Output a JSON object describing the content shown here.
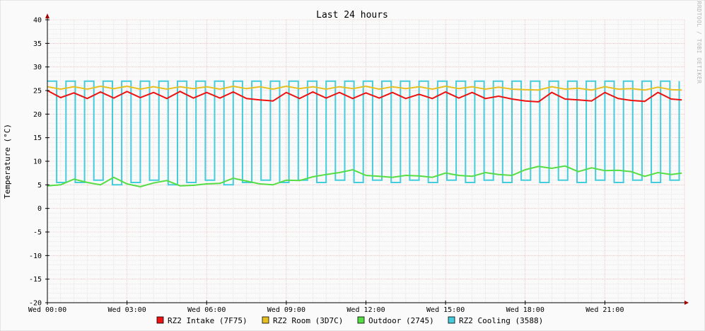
{
  "chart_data": {
    "type": "line",
    "title": "Last 24 hours",
    "ylabel": "Temperature (°C)",
    "xlabel": "",
    "watermark": "RRDTOOL / TOBI OETIKER",
    "ylim": [
      -20,
      40
    ],
    "yticks": [
      "40",
      "35",
      "30",
      "25",
      "20",
      "15",
      "10",
      "5",
      "0",
      "-5",
      "-10",
      "-15",
      "-20"
    ],
    "xlim_hours": [
      0,
      24
    ],
    "xticks": [
      {
        "hour": 0,
        "label": "Wed 00:00"
      },
      {
        "hour": 3,
        "label": "Wed 03:00"
      },
      {
        "hour": 6,
        "label": "Wed 06:00"
      },
      {
        "hour": 9,
        "label": "Wed 09:00"
      },
      {
        "hour": 12,
        "label": "Wed 12:00"
      },
      {
        "hour": 15,
        "label": "Wed 15:00"
      },
      {
        "hour": 18,
        "label": "Wed 18:00"
      },
      {
        "hour": 21,
        "label": "Wed 21:00"
      }
    ],
    "grid": true,
    "legend_position": "bottom",
    "colors": {
      "background": "#fafafa",
      "major_grid": "#e7a7a7",
      "minor_grid": "#d9d9d9",
      "axis": "#000000",
      "arrow": "#a00000"
    },
    "series": [
      {
        "name": "RZ2 Intake (7F75)",
        "color": "#ee1111",
        "x": [
          0.0,
          0.5,
          1.0,
          1.5,
          2.0,
          2.5,
          3.0,
          3.5,
          4.0,
          4.5,
          5.0,
          5.5,
          6.0,
          6.5,
          7.0,
          7.5,
          8.0,
          8.5,
          9.0,
          9.5,
          10.0,
          10.5,
          11.0,
          11.5,
          12.0,
          12.5,
          13.0,
          13.5,
          14.0,
          14.5,
          15.0,
          15.5,
          16.0,
          16.5,
          17.0,
          17.5,
          18.0,
          18.5,
          19.0,
          19.5,
          20.0,
          20.5,
          21.0,
          21.5,
          22.0,
          22.5,
          23.0,
          23.5,
          23.9
        ],
        "values": [
          25.0,
          23.5,
          24.5,
          23.3,
          24.7,
          23.4,
          24.8,
          23.5,
          24.6,
          23.3,
          24.8,
          23.4,
          24.6,
          23.4,
          24.7,
          23.3,
          23.0,
          22.8,
          24.6,
          23.3,
          24.7,
          23.4,
          24.6,
          23.3,
          24.5,
          23.4,
          24.6,
          23.3,
          24.2,
          23.3,
          24.7,
          23.4,
          24.6,
          23.3,
          23.8,
          23.2,
          22.8,
          22.6,
          24.6,
          23.2,
          23.0,
          22.8,
          24.6,
          23.3,
          22.9,
          22.7,
          24.6,
          23.2,
          23.0
        ]
      },
      {
        "name": "RZ2 Room (3D7C)",
        "color": "#e6c020",
        "x": [
          0.0,
          0.5,
          1.0,
          1.5,
          2.0,
          2.5,
          3.0,
          3.5,
          4.0,
          4.5,
          5.0,
          5.5,
          6.0,
          6.5,
          7.0,
          7.5,
          8.0,
          8.5,
          9.0,
          9.5,
          10.0,
          10.5,
          11.0,
          11.5,
          12.0,
          12.5,
          13.0,
          13.5,
          14.0,
          14.5,
          15.0,
          15.5,
          16.0,
          16.5,
          17.0,
          17.5,
          18.0,
          18.5,
          19.0,
          19.5,
          20.0,
          20.5,
          21.0,
          21.5,
          22.0,
          22.5,
          23.0,
          23.5,
          23.9
        ],
        "values": [
          25.8,
          25.3,
          25.8,
          25.3,
          25.9,
          25.4,
          25.9,
          25.3,
          25.8,
          25.3,
          25.8,
          25.4,
          25.8,
          25.3,
          25.9,
          25.4,
          25.8,
          25.3,
          25.9,
          25.4,
          25.8,
          25.3,
          25.8,
          25.4,
          25.9,
          25.3,
          25.8,
          25.4,
          25.8,
          25.3,
          25.9,
          25.4,
          25.8,
          25.3,
          25.7,
          25.3,
          25.2,
          25.1,
          25.8,
          25.3,
          25.5,
          25.1,
          25.8,
          25.3,
          25.4,
          25.1,
          25.7,
          25.2,
          25.1
        ]
      },
      {
        "name": "Outdoor (2745)",
        "color": "#55dd44",
        "x": [
          0.0,
          0.5,
          1.0,
          1.5,
          2.0,
          2.5,
          3.0,
          3.5,
          4.0,
          4.5,
          5.0,
          5.5,
          6.0,
          6.5,
          7.0,
          7.5,
          8.0,
          8.5,
          9.0,
          9.5,
          10.0,
          10.5,
          11.0,
          11.5,
          12.0,
          12.5,
          13.0,
          13.5,
          14.0,
          14.5,
          15.0,
          15.5,
          16.0,
          16.5,
          17.0,
          17.5,
          18.0,
          18.5,
          19.0,
          19.5,
          20.0,
          20.5,
          21.0,
          21.5,
          22.0,
          22.5,
          23.0,
          23.5,
          23.9
        ],
        "values": [
          4.8,
          5.0,
          6.2,
          5.5,
          5.0,
          6.6,
          5.2,
          4.6,
          5.4,
          5.9,
          4.8,
          4.9,
          5.2,
          5.3,
          6.4,
          5.8,
          5.2,
          5.0,
          6.0,
          5.9,
          6.7,
          7.2,
          7.6,
          8.2,
          7.0,
          6.8,
          6.6,
          7.0,
          6.9,
          6.6,
          7.5,
          7.0,
          6.8,
          7.6,
          7.2,
          7.0,
          8.2,
          8.9,
          8.5,
          9.0,
          7.8,
          8.6,
          8.0,
          8.1,
          7.8,
          6.8,
          7.6,
          7.2,
          7.5
        ]
      },
      {
        "name": "RZ2 Cooling (3588)",
        "color": "#44ccdd",
        "waveform": "square",
        "x": [
          0.0,
          0.35,
          0.7,
          1.05,
          1.4,
          1.75,
          2.1,
          2.45,
          2.8,
          3.15,
          3.5,
          3.85,
          4.2,
          4.55,
          4.9,
          5.25,
          5.6,
          5.95,
          6.3,
          6.65,
          7.0,
          7.35,
          7.7,
          8.05,
          8.4,
          8.75,
          9.1,
          9.45,
          9.8,
          10.15,
          10.5,
          10.85,
          11.2,
          11.55,
          11.9,
          12.25,
          12.6,
          12.95,
          13.3,
          13.65,
          14.0,
          14.35,
          14.7,
          15.05,
          15.4,
          15.75,
          16.1,
          16.45,
          16.8,
          17.15,
          17.5,
          17.85,
          18.2,
          18.55,
          18.9,
          19.25,
          19.6,
          19.95,
          20.3,
          20.65,
          21.0,
          21.35,
          21.7,
          22.05,
          22.4,
          22.75,
          23.1,
          23.45,
          23.8
        ],
        "values": [
          27.0,
          5.5,
          27.0,
          5.5,
          27.0,
          6.0,
          27.0,
          5.0,
          27.0,
          5.5,
          27.0,
          6.0,
          27.0,
          5.0,
          27.0,
          5.5,
          27.0,
          6.0,
          27.0,
          5.0,
          27.0,
          5.5,
          27.0,
          6.0,
          27.0,
          5.5,
          27.0,
          6.0,
          27.0,
          5.5,
          27.0,
          6.0,
          27.0,
          5.5,
          27.0,
          6.0,
          27.0,
          5.5,
          27.0,
          6.0,
          27.0,
          5.5,
          27.0,
          6.0,
          27.0,
          5.5,
          27.0,
          6.0,
          27.0,
          5.5,
          27.0,
          6.0,
          27.0,
          5.5,
          27.0,
          6.0,
          27.0,
          5.5,
          27.0,
          6.0,
          27.0,
          5.5,
          27.0,
          6.0,
          27.0,
          5.5,
          27.0,
          6.0,
          27.0
        ]
      }
    ]
  }
}
